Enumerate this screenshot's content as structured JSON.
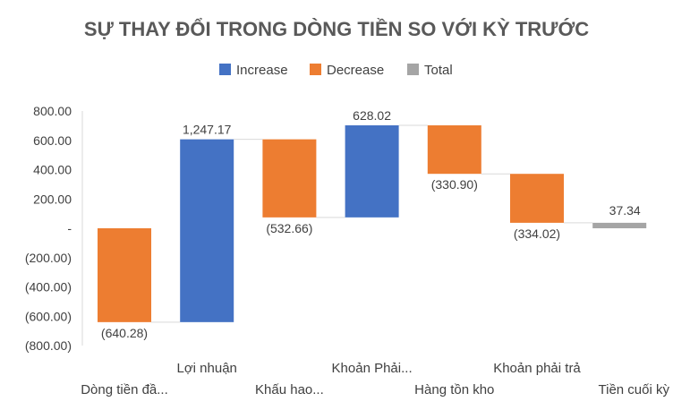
{
  "chart_data": {
    "type": "bar",
    "subtype": "waterfall",
    "title": "SỰ THAY ĐỔI TRONG DÒNG TIỀN SO VỚI KỲ TRƯỚC",
    "legend": {
      "placement": "top",
      "items": [
        {
          "name": "Increase",
          "color": "#4472C4"
        },
        {
          "name": "Decrease",
          "color": "#ED7D31"
        },
        {
          "name": "Total",
          "color": "#A5A5A5"
        }
      ]
    },
    "categories": [
      "Dòng tiền đầ...",
      "Lợi nhuận",
      "Khấu hao...",
      "Khoản Phải...",
      "Hàng tồn kho",
      "Khoản phải trả",
      "Tiền cuối kỳ"
    ],
    "values": [
      -640.28,
      1247.17,
      -532.66,
      628.02,
      -330.9,
      -334.02,
      37.34
    ],
    "data_labels": [
      "(640.28)",
      "1,247.17",
      "(532.66)",
      "628.02",
      "(330.90)",
      "(334.02)",
      "37.34"
    ],
    "kinds": [
      "decrease",
      "increase",
      "decrease",
      "increase",
      "decrease",
      "decrease",
      "total"
    ],
    "ylim": [
      -800,
      800
    ],
    "yticks": [
      {
        "value": 800,
        "label": "800.00"
      },
      {
        "value": 600,
        "label": "600.00"
      },
      {
        "value": 400,
        "label": "400.00"
      },
      {
        "value": 200,
        "label": "200.00"
      },
      {
        "value": 0,
        "label": "-"
      },
      {
        "value": -200,
        "label": "(200.00)"
      },
      {
        "value": -400,
        "label": "(400.00)"
      },
      {
        "value": -600,
        "label": "(600.00)"
      },
      {
        "value": -800,
        "label": "(800.00)"
      }
    ],
    "grid": false,
    "connector_color": "#D9D9D9"
  }
}
